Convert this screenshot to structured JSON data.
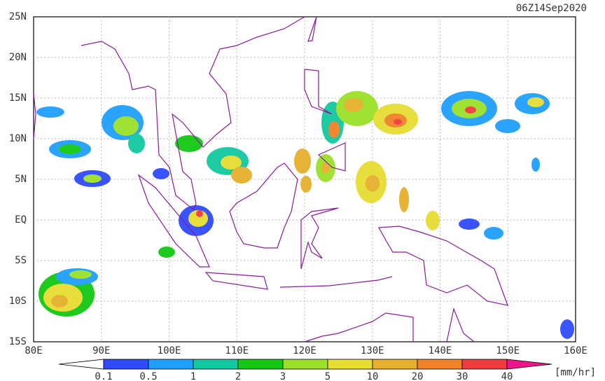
{
  "title": "06Z14Sep2020",
  "lon_labels": [
    "80E",
    "90E",
    "100E",
    "110E",
    "120E",
    "130E",
    "140E",
    "150E",
    "160E"
  ],
  "lat_labels": [
    "25N",
    "20N",
    "15N",
    "10N",
    "5N",
    "EQ",
    "5S",
    "10S",
    "15S"
  ],
  "colorbar": {
    "labels": [
      "0.1",
      "0.5",
      "1",
      "2",
      "3",
      "5",
      "10",
      "20",
      "30",
      "40"
    ],
    "colors": [
      "#2f4bff",
      "#1fa0ff",
      "#12c8a0",
      "#14c814",
      "#9be12a",
      "#e6dc32",
      "#e6af2d",
      "#f08228",
      "#f03c3c",
      "#f0148c"
    ],
    "unit": "[mm/hr]"
  }
}
